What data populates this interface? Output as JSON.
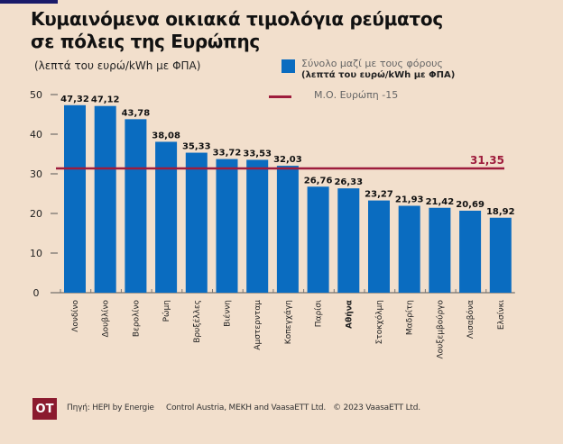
{
  "title_line1": "Κυμαινόμενα οικιακά τιμολόγια ρεύματος",
  "title_line2": "σε πόλεις της Ευρώπης",
  "unit_label": "(λεπτά του ευρώ/kWh με ΦΠΑ)",
  "legend": {
    "bars_label": "Σύνολο μαζί με τους φόρους",
    "bars_sublabel": "(λεπτά του ευρώ/kWh με ΦΠΑ)",
    "line_label": "Μ.Ο. Ευρώπη -15"
  },
  "colors": {
    "bar": "#0a6cc0",
    "average_line": "#9e1c3c",
    "background": "#f2dfcc",
    "logo": "#8b1a2e"
  },
  "footer": {
    "logo_text": "OT",
    "source": "Πηγή: HEPI by Energie     Control Austria, MEKH and VaasaETT Ltd.   © 2023 VaasaETT Ltd."
  },
  "chart_data": {
    "type": "bar",
    "title": "Κυμαινόμενα οικιακά τιμολόγια ρεύματος σε πόλεις της Ευρώπης",
    "ylabel": "(λεπτά του ευρώ/kWh με ΦΠΑ)",
    "xlabel": "",
    "ylim": [
      0,
      50
    ],
    "yticks": [
      0,
      10,
      20,
      30,
      40,
      50
    ],
    "grid": false,
    "legend_position": "top-right",
    "categories": [
      "Λονδίνο",
      "Δουβλίνο",
      "Βερολίνο",
      "Ρώμη",
      "Βρυξέλλες",
      "Βιέννη",
      "Αμστερνταμ",
      "Κοπεγχάγη",
      "Παρίσι",
      "Αθήνα",
      "Στοκχόλμη",
      "Μαδρίτη",
      "Λουξεμβούργο",
      "Λισαβόνα",
      "Ελσίνκι"
    ],
    "highlighted_category": "Αθήνα",
    "series": [
      {
        "name": "Σύνολο μαζί με τους φόρους",
        "values": [
          47.32,
          47.12,
          43.78,
          38.08,
          35.33,
          33.72,
          33.53,
          32.03,
          26.76,
          26.33,
          23.27,
          21.93,
          21.42,
          20.69,
          18.92
        ],
        "labels": [
          "47,32",
          "47,12",
          "43,78",
          "38,08",
          "35,33",
          "33,72",
          "33,53",
          "32,03",
          "26,76",
          "26,33",
          "23,27",
          "21,93",
          "21,42",
          "20,69",
          "18,92"
        ]
      }
    ],
    "reference_line": {
      "name": "Μ.Ο. Ευρώπη -15",
      "value": 31.35,
      "label": "31,35"
    }
  }
}
